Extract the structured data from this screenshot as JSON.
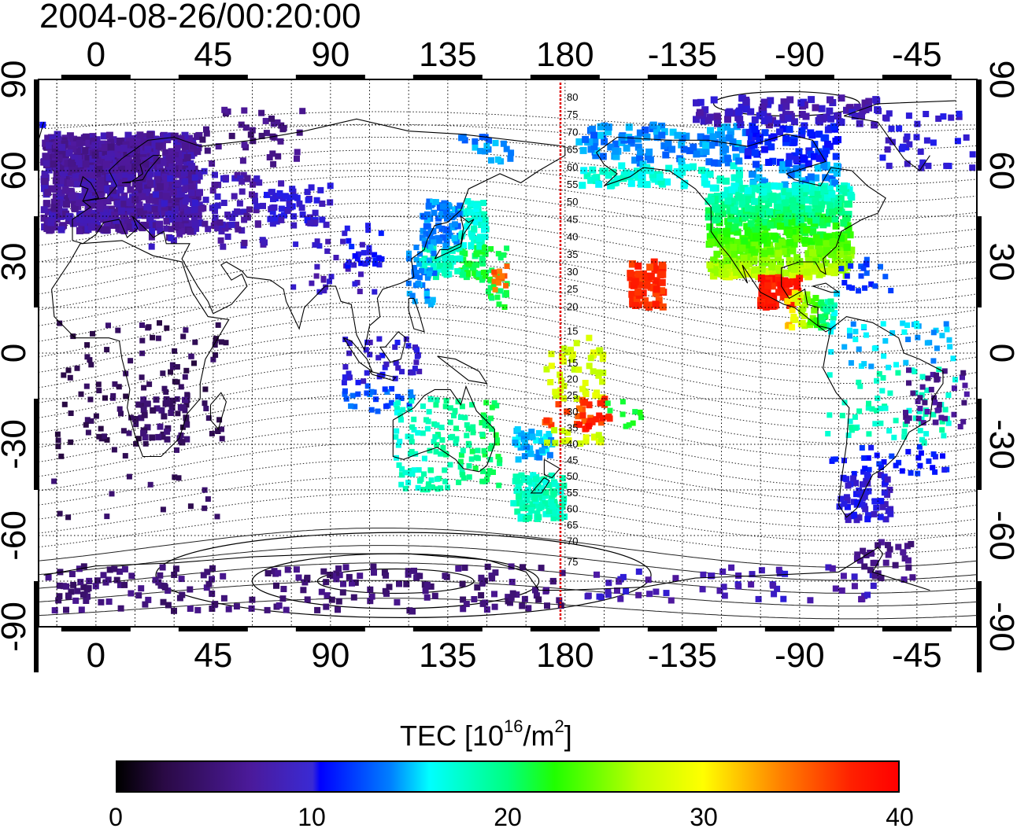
{
  "title": "2004-08-26/00:20:00",
  "map": {
    "x_tick_labels": [
      "0",
      "45",
      "90",
      "135",
      "180",
      "-135",
      "-90",
      "-45"
    ],
    "y_tick_labels": [
      "90",
      "60",
      "30",
      "0",
      "-30",
      "-60",
      "-90"
    ],
    "meridian_label_north": [
      "80",
      "75",
      "70",
      "65",
      "60",
      "55",
      "50",
      "45",
      "40",
      "35",
      "30",
      "25",
      "20",
      "15"
    ],
    "meridian_label_south": [
      "15",
      "20",
      "25",
      "30",
      "35",
      "40",
      "45",
      "50",
      "55",
      "60",
      "65",
      "70",
      "75"
    ],
    "meridian_line_color": "#ff0000"
  },
  "colorbar": {
    "title_main": "TEC  [10",
    "title_exp1": "16",
    "title_mid": "/m",
    "title_exp2": "2",
    "title_end": "]",
    "ticks": [
      "0",
      "10",
      "20",
      "30",
      "40"
    ],
    "range": [
      0,
      40
    ],
    "colormap": "jet-like (black-purple-blue-cyan-green-yellow-red)"
  }
}
